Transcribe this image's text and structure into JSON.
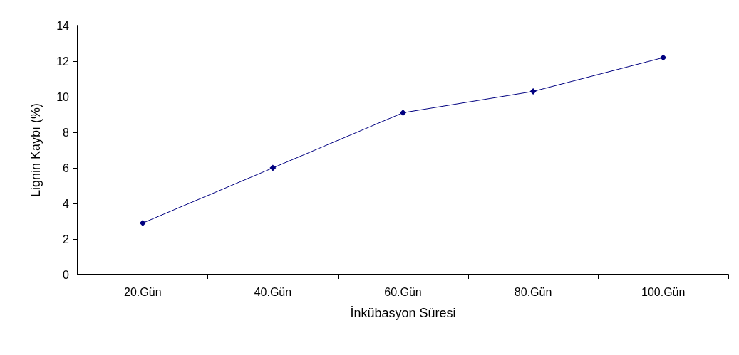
{
  "chart_data": {
    "type": "line",
    "xlabel": "İnkübasyon Süresi",
    "ylabel": "Lignin Kaybı (%)",
    "categories": [
      "20.Gün",
      "40.Gün",
      "60.Gün",
      "80.Gün",
      "100.Gün"
    ],
    "series": [
      {
        "color": "#000080",
        "values": [
          2.9,
          6.0,
          9.1,
          10.3,
          12.2
        ]
      }
    ],
    "ylim": [
      0,
      14
    ],
    "yticks": [
      0,
      2,
      4,
      6,
      8,
      10,
      12,
      14
    ],
    "grid": false,
    "marker": "diamond",
    "line_style": "solid"
  }
}
